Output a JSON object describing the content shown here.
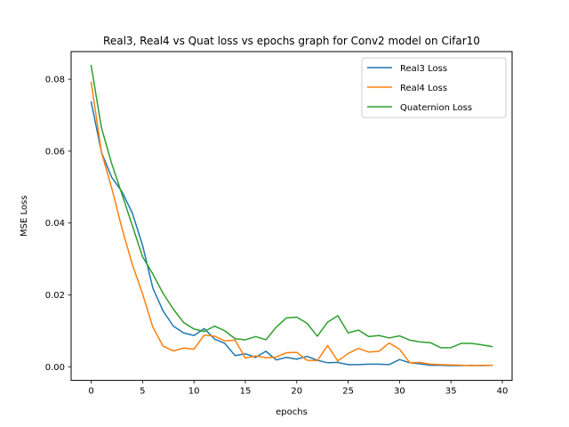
{
  "chart_data": {
    "type": "line",
    "title": "Real3, Real4 vs Quat loss vs epochs graph for Conv2 model on Cifar10",
    "xlabel": "epochs",
    "ylabel": "MSE Loss",
    "xlim": [
      -1.95,
      40.95
    ],
    "ylim": [
      -0.0038,
      0.0877
    ],
    "xticks": [
      0,
      5,
      10,
      15,
      20,
      25,
      30,
      35,
      40
    ],
    "xtick_labels": [
      "0",
      "5",
      "10",
      "15",
      "20",
      "25",
      "30",
      "35",
      "40"
    ],
    "yticks": [
      0.0,
      0.02,
      0.04,
      0.06,
      0.08
    ],
    "ytick_labels": [
      "0.00",
      "0.02",
      "0.04",
      "0.06",
      "0.08"
    ],
    "grid": false,
    "legend_position": "top-right",
    "x": [
      0,
      1,
      2,
      3,
      4,
      5,
      6,
      7,
      8,
      9,
      10,
      11,
      12,
      13,
      14,
      15,
      16,
      17,
      18,
      19,
      20,
      21,
      22,
      23,
      24,
      25,
      26,
      27,
      28,
      29,
      30,
      31,
      32,
      33,
      34,
      35,
      36,
      37,
      38,
      39
    ],
    "series": [
      {
        "name": "Real3 Loss",
        "color": "#1f77b4",
        "values": [
          0.0737,
          0.0597,
          0.0527,
          0.0487,
          0.0428,
          0.0338,
          0.0219,
          0.0155,
          0.0113,
          0.0094,
          0.0087,
          0.0106,
          0.0077,
          0.0065,
          0.0031,
          0.0036,
          0.0026,
          0.0043,
          0.0019,
          0.0026,
          0.0021,
          0.0029,
          0.0018,
          0.0011,
          0.0012,
          0.0006,
          0.0006,
          0.0007,
          0.0007,
          0.0006,
          0.002,
          0.0011,
          0.0008,
          0.0004,
          0.0004,
          0.0003,
          0.0003,
          0.0004,
          0.0003,
          0.0004
        ]
      },
      {
        "name": "Real4 Loss",
        "color": "#ff7f0e",
        "values": [
          0.0792,
          0.0597,
          0.0497,
          0.0385,
          0.0285,
          0.0203,
          0.011,
          0.0057,
          0.0044,
          0.0052,
          0.0049,
          0.0088,
          0.0085,
          0.0072,
          0.0074,
          0.0024,
          0.003,
          0.0025,
          0.0027,
          0.0039,
          0.004,
          0.0018,
          0.0017,
          0.0059,
          0.0016,
          0.0037,
          0.0051,
          0.0041,
          0.0043,
          0.0066,
          0.0049,
          0.0011,
          0.0012,
          0.0007,
          0.0006,
          0.0005,
          0.0004,
          0.0003,
          0.0004,
          0.0004
        ]
      },
      {
        "name": "Quaternion Loss",
        "color": "#2ca02c",
        "values": [
          0.0838,
          0.0665,
          0.0565,
          0.048,
          0.0393,
          0.0306,
          0.0258,
          0.0204,
          0.016,
          0.0123,
          0.0105,
          0.0098,
          0.0113,
          0.01,
          0.0078,
          0.0075,
          0.0084,
          0.0075,
          0.011,
          0.0136,
          0.0138,
          0.0121,
          0.0085,
          0.0124,
          0.0142,
          0.0094,
          0.0102,
          0.0084,
          0.0087,
          0.008,
          0.0086,
          0.0074,
          0.0069,
          0.0067,
          0.0053,
          0.0053,
          0.0065,
          0.0065,
          0.0061,
          0.0056
        ]
      }
    ]
  }
}
